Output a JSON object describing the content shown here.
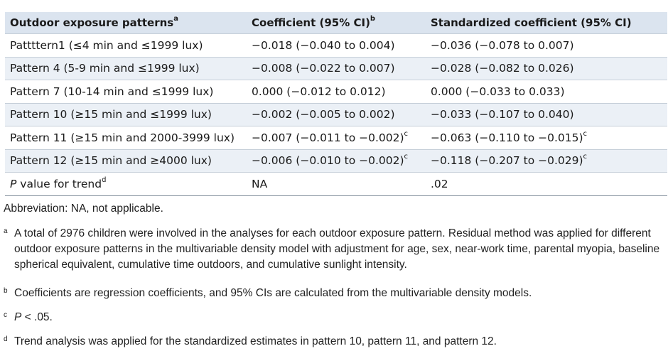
{
  "table": {
    "headers": [
      {
        "text": "Outdoor exposure patterns",
        "sup": "a"
      },
      {
        "text": "Coefficient (95% CI)",
        "sup": "b"
      },
      {
        "text": "Standardized coefficient (95% CI)",
        "sup": ""
      }
    ],
    "rows": [
      {
        "label": "Pattttern1 (≤4 min and ≤1999 lux)",
        "coef": "−0.018 (−0.040 to 0.004)",
        "coef_sup": "",
        "std": "−0.036 (−0.078 to 0.007)",
        "std_sup": ""
      },
      {
        "label": "Pattern 4 (5-9 min and ≤1999 lux)",
        "coef": "−0.008 (−0.022 to 0.007)",
        "coef_sup": "",
        "std": "−0.028 (−0.082 to 0.026)",
        "std_sup": ""
      },
      {
        "label": "Pattern 7 (10-14 min and ≤1999 lux)",
        "coef": "0.000 (−0.012 to 0.012)",
        "coef_sup": "",
        "std": "0.000 (−0.033 to 0.033)",
        "std_sup": ""
      },
      {
        "label": "Pattern 10 (≥15 min and ≤1999 lux)",
        "coef": "−0.002 (−0.005 to 0.002)",
        "coef_sup": "",
        "std": "−0.033 (−0.107 to 0.040)",
        "std_sup": ""
      },
      {
        "label": "Pattern 11 (≥15 min and 2000-3999 lux)",
        "coef": "−0.007 (−0.011 to −0.002)",
        "coef_sup": "c",
        "std": "−0.063 (−0.110 to −0.015)",
        "std_sup": "c"
      },
      {
        "label": "Pattern 12 (≥15 min and ≥4000 lux)",
        "coef": "−0.006 (−0.010 to −0.002)",
        "coef_sup": "c",
        "std": "−0.118 (−0.207 to −0.029)",
        "std_sup": "c"
      }
    ],
    "trend_row": {
      "label_italic": "P",
      "label_rest": " value for trend",
      "label_sup": "d",
      "coef": "NA",
      "std": ".02"
    }
  },
  "footnotes": {
    "abbreviation": "Abbreviation: NA, not applicable.",
    "a": {
      "mark": "a",
      "text": "A total of 2976 children were involved in the analyses for each outdoor exposure pattern. Residual method was applied for different outdoor exposure patterns in the multivariable density model with adjustment for age, sex, near-work time, parental myopia, baseline spherical equivalent, cumulative time outdoors, and cumulative sunlight intensity."
    },
    "b": {
      "mark": "b",
      "text": "Coefficients are regression coefficients, and 95% CIs are calculated from the multivariable density models."
    },
    "c": {
      "mark": "c",
      "italic": "P",
      "text": " < .05."
    },
    "d": {
      "mark": "d",
      "text": "Trend analysis was applied for the standardized estimates in pattern 10, pattern 11, and pattern 12."
    }
  },
  "colors": {
    "header_bg": "#dbe4ef",
    "stripe_bg": "#ebf0f6",
    "rule": "#8a96a3"
  }
}
